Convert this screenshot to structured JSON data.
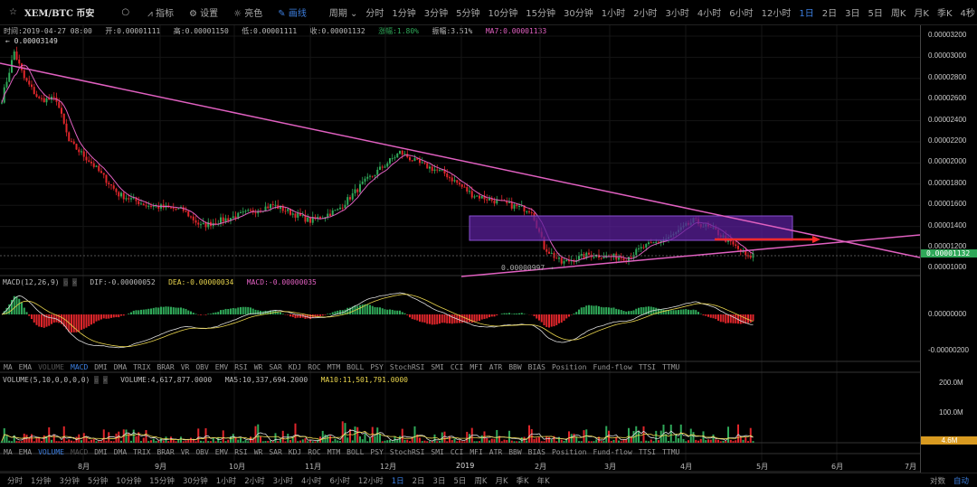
{
  "toolbar": {
    "symbol": "XEM/BTC 币安",
    "indicator": "指标",
    "settings": "设置",
    "theme": "亮色",
    "draw": "画线",
    "period": "周期",
    "timeframes": [
      "分时",
      "1分钟",
      "3分钟",
      "5分钟",
      "10分钟",
      "15分钟",
      "30分钟",
      "1小时",
      "2小时",
      "3小时",
      "4小时",
      "6小时",
      "12小时",
      "1日",
      "2日",
      "3日",
      "5日",
      "周K",
      "月K",
      "季K"
    ],
    "active_timeframe": "1日",
    "refresh": "4秒"
  },
  "info": {
    "time": "时间:2019-04-27 08:00",
    "open": "开:0.00001111",
    "high": "高:0.00001150",
    "low": "低:0.00001111",
    "close": "收:0.00001132",
    "change": "涨幅:1.80%",
    "amplitude": "振幅:3.51%",
    "ma7": "MA7:0.00001133"
  },
  "annotations": {
    "high_label": "← 0.00003149",
    "low_label": "0.00000997 →"
  },
  "price_axis": {
    "ticks": [
      "0.00003200",
      "0.00003000",
      "0.00002800",
      "0.00002600",
      "0.00002400",
      "0.00002200",
      "0.00002000",
      "0.00001800",
      "0.00001600",
      "0.00001400",
      "0.00001200",
      "0.00001000"
    ],
    "current": "0.00001132"
  },
  "macd": {
    "title": "MACD(12,26,9)",
    "dif": "DIF:-0.00000052",
    "dea": "DEA:-0.00000034",
    "macd": "MACD:-0.00000035",
    "ticks": [
      "0.00000000",
      "-0.00000200"
    ]
  },
  "volume": {
    "title": "VOLUME(5,10,0,0,0,0)",
    "volume": "VOLUME:4,617,877.0000",
    "ma5": "MA5:10,337,694.2000",
    "ma10": "MA10:11,501,791.0000",
    "ticks": [
      "200.0M",
      "100.0M"
    ],
    "current": "4.6M"
  },
  "indicator_tabs": [
    "MA",
    "EMA",
    "VOLUME",
    "MACD",
    "DMI",
    "DMA",
    "TRIX",
    "BRAR",
    "VR",
    "OBV",
    "EMV",
    "RSI",
    "WR",
    "SAR",
    "KDJ",
    "ROC",
    "MTM",
    "BOLL",
    "PSY",
    "StochRSI",
    "SMI",
    "CCI",
    "MFI",
    "ATR",
    "BBW",
    "BIAS",
    "Position",
    "Fund-flow",
    "TTSI",
    "TTMU"
  ],
  "months": [
    "8月",
    "9月",
    "10月",
    "11月",
    "12月",
    "2019",
    "2月",
    "3月",
    "4月",
    "5月",
    "6月",
    "7月"
  ],
  "bottom": {
    "timeframes": [
      "分时",
      "1分钟",
      "3分钟",
      "5分钟",
      "10分钟",
      "15分钟",
      "30分钟",
      "1小时",
      "2小时",
      "3小时",
      "4小时",
      "6小时",
      "12小时",
      "1日",
      "2日",
      "3日",
      "5日",
      "周K",
      "月K",
      "季K",
      "年K"
    ],
    "active": "1日",
    "log": "对数",
    "auto": "自动"
  },
  "colors": {
    "up": "#2fa859",
    "down": "#e0262b",
    "ma": "#e060c0",
    "trend": "#e060c0",
    "box": "#5a1f9a",
    "accent": "#3d7fe0",
    "volTag": "#d89a20"
  },
  "chart_data": {
    "type": "candlestick",
    "pair": "XEM/BTC",
    "interval": "1D",
    "price_range": [
      1e-05,
      3.2e-05
    ],
    "close_path_day_price_e6": [
      [
        0,
        26
      ],
      [
        5,
        30.5
      ],
      [
        9,
        28
      ],
      [
        15,
        26
      ],
      [
        22,
        26
      ],
      [
        27,
        22
      ],
      [
        36,
        20
      ],
      [
        47,
        17
      ],
      [
        58,
        16
      ],
      [
        73,
        15.5
      ],
      [
        80,
        14
      ],
      [
        95,
        15
      ],
      [
        109,
        16
      ],
      [
        124,
        14.5
      ],
      [
        135,
        15.5
      ],
      [
        145,
        18
      ],
      [
        160,
        21
      ],
      [
        167,
        20
      ],
      [
        178,
        19
      ],
      [
        189,
        17
      ],
      [
        204,
        16
      ],
      [
        213,
        15.5
      ],
      [
        218,
        12
      ],
      [
        225,
        10.5
      ],
      [
        236,
        11.3
      ],
      [
        251,
        11
      ],
      [
        258,
        12
      ],
      [
        269,
        13
      ],
      [
        278,
        14.5
      ],
      [
        287,
        13.5
      ],
      [
        295,
        12
      ],
      [
        300,
        11
      ],
      [
        302,
        11.3
      ]
    ]
  }
}
